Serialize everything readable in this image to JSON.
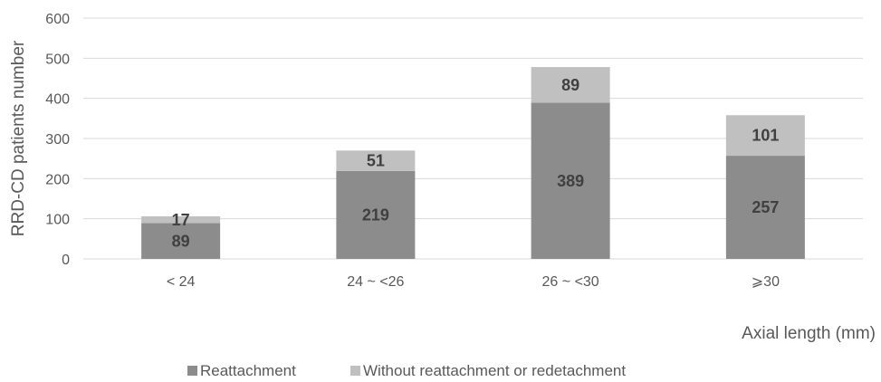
{
  "chart_data": {
    "type": "bar",
    "stacked": true,
    "categories": [
      "< 24",
      "24 ~ <26",
      "26 ~ <30",
      "⩾30"
    ],
    "series": [
      {
        "name": "Reattachment",
        "values": [
          89,
          219,
          389,
          257
        ],
        "color": "#8c8c8c"
      },
      {
        "name": "Without reattachment or redetachment",
        "values": [
          17,
          51,
          89,
          101
        ],
        "color": "#c0c0c0"
      }
    ],
    "xlabel": "Axial length (mm)",
    "ylabel": "RRD-CD patients number",
    "ylim": [
      0,
      600
    ],
    "yticks": [
      0,
      100,
      200,
      300,
      400,
      500,
      600
    ],
    "grid": true,
    "legend_position": "bottom",
    "gridline_color": "#d9d9d9",
    "text_color": "#595959",
    "label_color": "#404040"
  }
}
